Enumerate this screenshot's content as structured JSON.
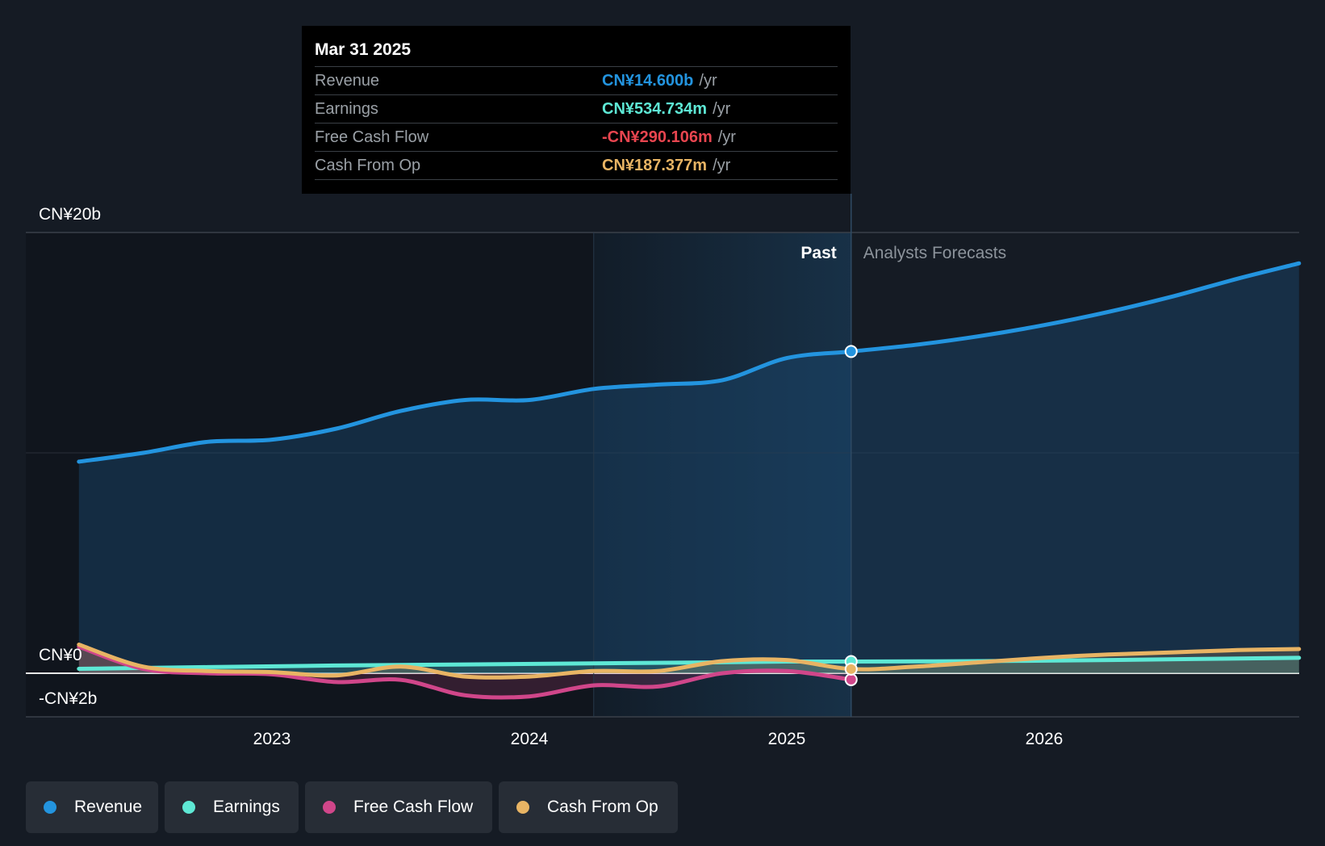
{
  "tooltip": {
    "date": "Mar 31 2025",
    "rows": [
      {
        "label": "Revenue",
        "value": "CN¥14.600b",
        "unit": "/yr",
        "color": "#2394df"
      },
      {
        "label": "Earnings",
        "value": "CN¥534.734m",
        "unit": "/yr",
        "color": "#5ee8d5"
      },
      {
        "label": "Free Cash Flow",
        "value": "-CN¥290.106m",
        "unit": "/yr",
        "color": "#e8454f"
      },
      {
        "label": "Cash From Op",
        "value": "CN¥187.377m",
        "unit": "/yr",
        "color": "#e8b464"
      }
    ]
  },
  "legend": [
    {
      "label": "Revenue",
      "color": "#2394df"
    },
    {
      "label": "Earnings",
      "color": "#5ee8d5"
    },
    {
      "label": "Free Cash Flow",
      "color": "#d0468a"
    },
    {
      "label": "Cash From Op",
      "color": "#e8b464"
    }
  ],
  "chart_data": {
    "type": "line",
    "title": "",
    "y_unit": "CN¥ billions",
    "ylim": [
      -2,
      20
    ],
    "y_ticks": [
      {
        "value": 20,
        "label": "CN¥20b"
      },
      {
        "value": 0,
        "label": "CN¥0"
      },
      {
        "value": -2,
        "label": "-CN¥2b"
      }
    ],
    "x_range": [
      2022.0,
      2026.99
    ],
    "x_ticks": [
      {
        "value": 2023,
        "label": "2023"
      },
      {
        "value": 2024,
        "label": "2024"
      },
      {
        "value": 2025,
        "label": "2025"
      },
      {
        "value": 2026,
        "label": "2026"
      }
    ],
    "past_label": "Past",
    "forecast_label": "Analysts Forecasts",
    "split_x": 2025.25,
    "highlight_start_x": 2024.25,
    "series": [
      {
        "name": "Revenue",
        "color": "#2394df",
        "x": [
          2022.25,
          2022.5,
          2022.75,
          2023.0,
          2023.25,
          2023.5,
          2023.75,
          2024.0,
          2024.25,
          2024.5,
          2024.75,
          2025.0,
          2025.25,
          2025.5,
          2025.75,
          2026.0,
          2026.25,
          2026.5,
          2026.75,
          2026.99
        ],
        "values": [
          9.6,
          10.0,
          10.5,
          10.6,
          11.1,
          11.9,
          12.4,
          12.4,
          12.9,
          13.1,
          13.3,
          14.3,
          14.6,
          14.9,
          15.3,
          15.8,
          16.4,
          17.1,
          17.9,
          18.6
        ]
      },
      {
        "name": "Earnings",
        "color": "#5ee8d5",
        "x": [
          2022.25,
          2022.75,
          2023.25,
          2023.75,
          2024.25,
          2024.75,
          2025.0,
          2025.25,
          2025.75,
          2026.25,
          2026.99
        ],
        "values": [
          0.2,
          0.28,
          0.35,
          0.4,
          0.45,
          0.5,
          0.53,
          0.53,
          0.55,
          0.6,
          0.7
        ]
      },
      {
        "name": "Free Cash Flow",
        "color": "#d0468a",
        "x": [
          2022.25,
          2022.5,
          2022.75,
          2023.0,
          2023.25,
          2023.5,
          2023.75,
          2024.0,
          2024.25,
          2024.5,
          2024.75,
          2025.0,
          2025.25
        ],
        "values": [
          1.2,
          0.2,
          0.0,
          -0.05,
          -0.4,
          -0.3,
          -1.0,
          -1.05,
          -0.55,
          -0.6,
          0.0,
          0.1,
          -0.29
        ]
      },
      {
        "name": "Cash From Op",
        "color": "#e8b464",
        "x": [
          2022.25,
          2022.5,
          2022.75,
          2023.0,
          2023.25,
          2023.5,
          2023.75,
          2024.0,
          2024.25,
          2024.5,
          2024.75,
          2025.0,
          2025.25,
          2025.5,
          2025.75,
          2026.0,
          2026.25,
          2026.5,
          2026.75,
          2026.99
        ],
        "values": [
          1.3,
          0.3,
          0.1,
          0.05,
          -0.1,
          0.3,
          -0.15,
          -0.15,
          0.1,
          0.1,
          0.55,
          0.6,
          0.19,
          0.3,
          0.5,
          0.7,
          0.85,
          0.95,
          1.05,
          1.1
        ]
      }
    ]
  }
}
